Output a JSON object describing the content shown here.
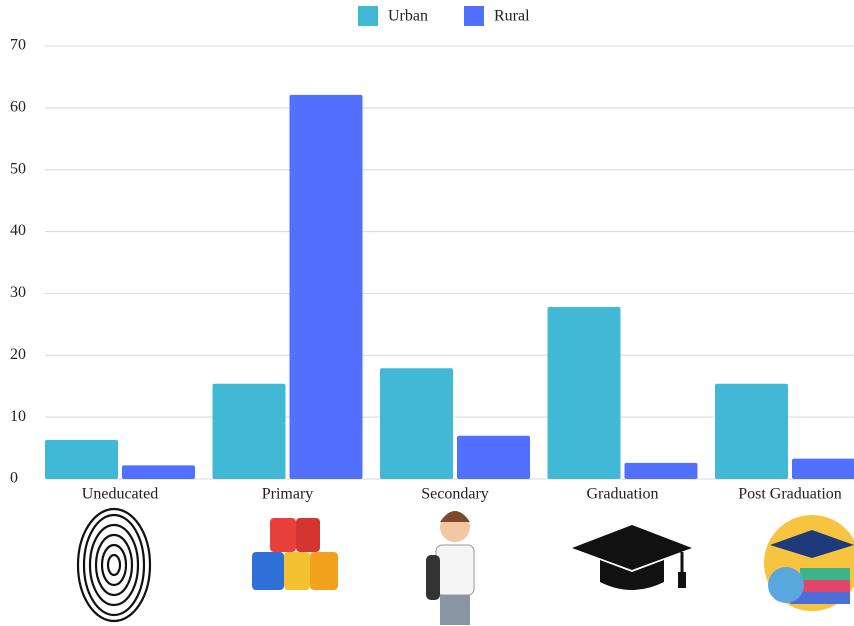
{
  "chart_data": {
    "type": "bar",
    "categories": [
      "Uneducated",
      "Primary",
      "Secondary",
      "Graduation",
      "Post Graduation"
    ],
    "series": [
      {
        "name": "Urban",
        "color": "#41b8d5",
        "values": [
          6.3,
          15.4,
          17.9,
          27.8,
          15.4
        ]
      },
      {
        "name": "Rural",
        "color": "#5170ff",
        "values": [
          2.2,
          62.1,
          7.0,
          2.6,
          3.3
        ]
      }
    ],
    "ylim": [
      0,
      70
    ],
    "yticks": [
      0,
      10,
      20,
      30,
      40,
      50,
      60,
      70
    ],
    "grid": true,
    "legend": "top"
  }
}
